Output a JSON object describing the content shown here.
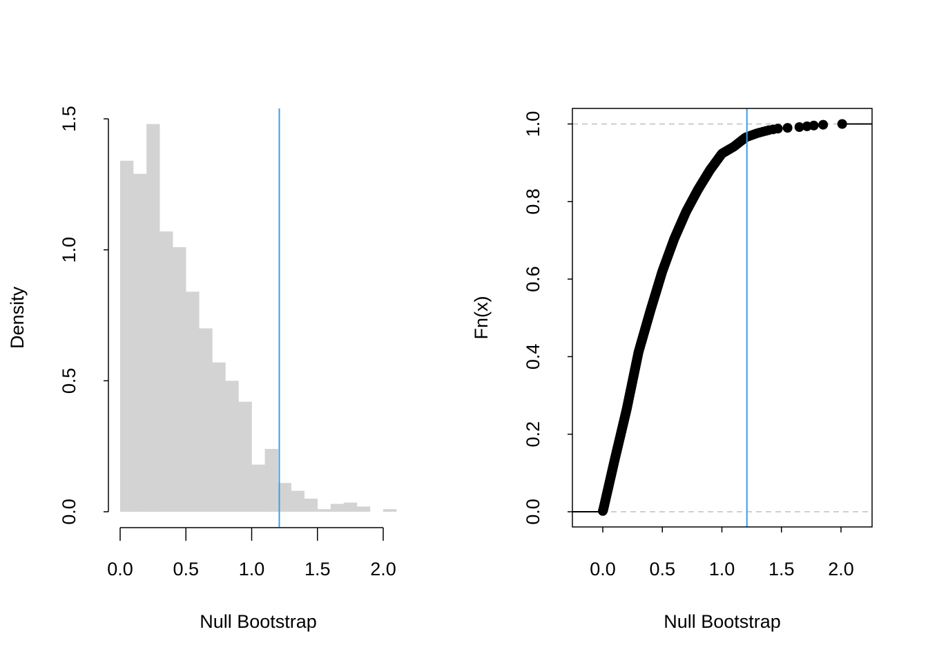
{
  "chart_data": [
    {
      "type": "bar",
      "subtype": "histogram",
      "title": "",
      "xlabel": "Null Bootstrap",
      "ylabel": "Density",
      "bin_width": 0.1,
      "bin_starts": [
        0.0,
        0.1,
        0.2,
        0.3,
        0.4,
        0.5,
        0.6,
        0.7,
        0.8,
        0.9,
        1.0,
        1.1,
        1.2,
        1.3,
        1.4,
        1.5,
        1.6,
        1.7,
        1.8,
        1.9,
        2.0
      ],
      "values": [
        1.34,
        1.29,
        1.48,
        1.07,
        1.01,
        0.84,
        0.7,
        0.57,
        0.5,
        0.42,
        0.18,
        0.24,
        0.11,
        0.08,
        0.05,
        0.01,
        0.03,
        0.035,
        0.02,
        0.0,
        0.01
      ],
      "xticks": [
        "0.0",
        "0.5",
        "1.0",
        "1.5",
        "2.0"
      ],
      "yticks": [
        "0.0",
        "0.5",
        "1.0",
        "1.5"
      ],
      "xlim": [
        0,
        2.1
      ],
      "ylim": [
        0,
        1.5
      ],
      "bar_color": "#d3d3d3",
      "vline": {
        "x": 1.21,
        "color": "#3a9ee4"
      }
    },
    {
      "type": "scatter",
      "subtype": "ecdf",
      "title": "",
      "xlabel": "Null Bootstrap",
      "ylabel": "Fn(x)",
      "xticks": [
        "0.0",
        "0.5",
        "1.0",
        "1.5",
        "2.0"
      ],
      "yticks": [
        "0.0",
        "0.2",
        "0.4",
        "0.6",
        "0.8",
        "1.0"
      ],
      "xlim": [
        -0.26,
        2.26
      ],
      "ylim": [
        -0.04,
        1.04
      ],
      "x_min": 0.0,
      "x_max": 2.01,
      "hlines": [
        0,
        1
      ],
      "hline_color": "#bebebe",
      "point_color": "#000000",
      "vline": {
        "x": 1.21,
        "color": "#3a9ee4"
      }
    }
  ]
}
